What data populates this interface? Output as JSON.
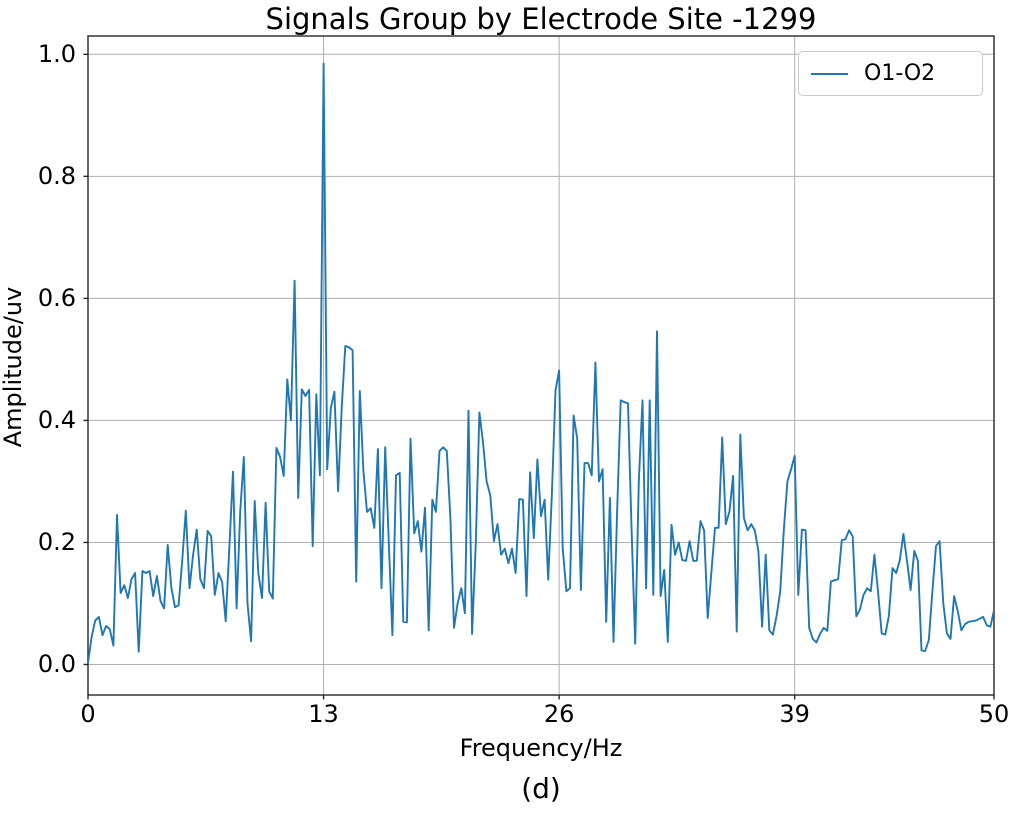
{
  "figure": {
    "title": "Signals Group by Electrode Site -1299",
    "caption": "(d)",
    "legend": {
      "label": "O1-O2"
    },
    "axes": {
      "xlabel": "Frequency/Hz",
      "ylabel": "Amplitude/uv",
      "xtick_labels": [
        "0",
        "13",
        "26",
        "39",
        "50"
      ],
      "ytick_labels": [
        "0.0",
        "0.2",
        "0.4",
        "0.6",
        "0.8",
        "1.0"
      ]
    },
    "colors": {
      "line": "#1f77b4",
      "grid": "#b0b0b0",
      "spine": "#262626",
      "text": "#000000",
      "legend_border": "#cccccc"
    }
  },
  "chart_data": {
    "type": "line",
    "title": "Signals Group by Electrode Site -1299",
    "xlabel": "Frequency/Hz",
    "ylabel": "Amplitude/uv",
    "caption": "(d)",
    "xlim": [
      0,
      50
    ],
    "ylim": [
      -0.05,
      1.03
    ],
    "xticks": [
      0,
      13,
      26,
      39,
      50
    ],
    "yticks": [
      0.0,
      0.2,
      0.4,
      0.6,
      0.8,
      1.0
    ],
    "grid": true,
    "legend_position": "upper right",
    "series": [
      {
        "name": "O1-O2",
        "color": "#1f77b4",
        "x_start": 0,
        "x_step": 0.2,
        "y": [
          0.003,
          0.045,
          0.072,
          0.078,
          0.048,
          0.063,
          0.058,
          0.031,
          0.245,
          0.117,
          0.13,
          0.109,
          0.14,
          0.15,
          0.021,
          0.153,
          0.15,
          0.153,
          0.112,
          0.145,
          0.104,
          0.092,
          0.196,
          0.125,
          0.094,
          0.097,
          0.17,
          0.252,
          0.125,
          0.18,
          0.221,
          0.14,
          0.125,
          0.219,
          0.21,
          0.114,
          0.15,
          0.135,
          0.071,
          0.19,
          0.316,
          0.092,
          0.25,
          0.34,
          0.1,
          0.038,
          0.268,
          0.15,
          0.109,
          0.265,
          0.12,
          0.108,
          0.355,
          0.34,
          0.309,
          0.467,
          0.4,
          0.629,
          0.273,
          0.451,
          0.44,
          0.45,
          0.194,
          0.443,
          0.31,
          0.985,
          0.32,
          0.42,
          0.447,
          0.284,
          0.42,
          0.522,
          0.52,
          0.515,
          0.136,
          0.448,
          0.317,
          0.25,
          0.256,
          0.224,
          0.353,
          0.125,
          0.356,
          0.2,
          0.048,
          0.31,
          0.314,
          0.07,
          0.069,
          0.37,
          0.215,
          0.235,
          0.185,
          0.257,
          0.056,
          0.27,
          0.25,
          0.35,
          0.356,
          0.35,
          0.24,
          0.06,
          0.1,
          0.125,
          0.084,
          0.416,
          0.05,
          0.2,
          0.413,
          0.364,
          0.3,
          0.277,
          0.202,
          0.23,
          0.18,
          0.19,
          0.166,
          0.19,
          0.15,
          0.271,
          0.27,
          0.112,
          0.315,
          0.207,
          0.336,
          0.243,
          0.27,
          0.139,
          0.28,
          0.449,
          0.482,
          0.19,
          0.12,
          0.125,
          0.408,
          0.37,
          0.122,
          0.33,
          0.33,
          0.31,
          0.495,
          0.3,
          0.32,
          0.07,
          0.273,
          0.037,
          0.25,
          0.433,
          0.43,
          0.428,
          0.22,
          0.034,
          0.3,
          0.433,
          0.125,
          0.433,
          0.114,
          0.546,
          0.112,
          0.155,
          0.037,
          0.229,
          0.18,
          0.2,
          0.171,
          0.17,
          0.202,
          0.17,
          0.17,
          0.235,
          0.22,
          0.076,
          0.15,
          0.224,
          0.224,
          0.372,
          0.23,
          0.25,
          0.309,
          0.054,
          0.377,
          0.24,
          0.22,
          0.23,
          0.22,
          0.186,
          0.062,
          0.18,
          0.056,
          0.049,
          0.08,
          0.119,
          0.22,
          0.3,
          0.32,
          0.342,
          0.114,
          0.221,
          0.22,
          0.06,
          0.042,
          0.036,
          0.05,
          0.06,
          0.055,
          0.136,
          0.138,
          0.14,
          0.204,
          0.205,
          0.22,
          0.21,
          0.079,
          0.09,
          0.114,
          0.125,
          0.12,
          0.18,
          0.12,
          0.051,
          0.049,
          0.08,
          0.158,
          0.15,
          0.171,
          0.214,
          0.17,
          0.122,
          0.186,
          0.17,
          0.023,
          0.022,
          0.04,
          0.12,
          0.194,
          0.202,
          0.1,
          0.051,
          0.042,
          0.112,
          0.087,
          0.056,
          0.066,
          0.07,
          0.071,
          0.072,
          0.075,
          0.078,
          0.064,
          0.062,
          0.089
        ]
      }
    ]
  }
}
